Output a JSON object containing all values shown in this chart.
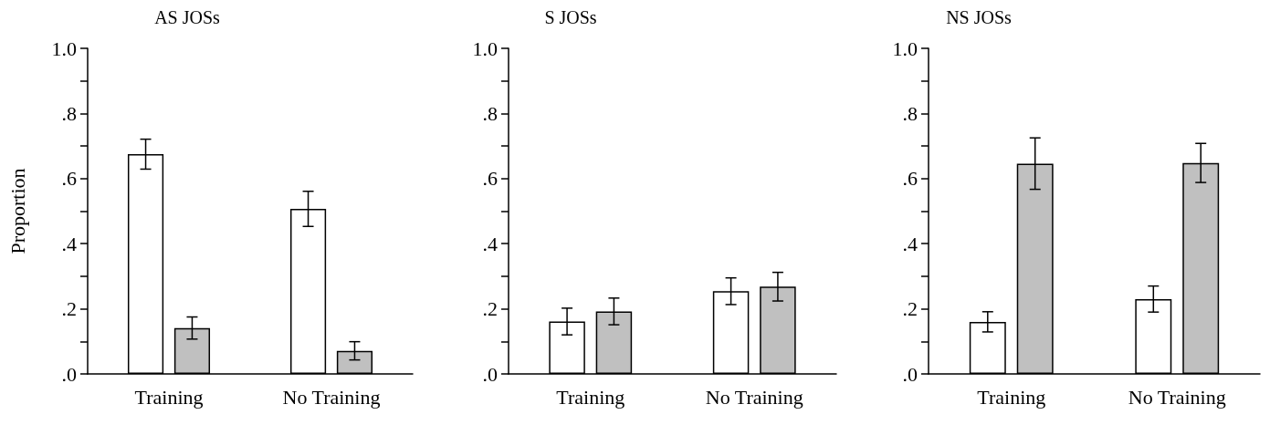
{
  "chart_data": [
    {
      "type": "bar",
      "title": "AS JOSs",
      "ylabel": "Proportion",
      "categories": [
        "Training",
        "No Training"
      ],
      "series": [
        {
          "color": "#ffffff",
          "values": [
            0.675,
            0.507
          ],
          "errors": [
            0.046,
            0.054
          ]
        },
        {
          "color": "#c0c0c0",
          "values": [
            0.141,
            0.071
          ],
          "errors": [
            0.034,
            0.028
          ]
        }
      ],
      "ylim": [
        0,
        1
      ],
      "yticks": [
        {
          "value": 0,
          "label": ".0"
        },
        {
          "value": 0.1,
          "label": null
        },
        {
          "value": 0.2,
          "label": ".2"
        },
        {
          "value": 0.3,
          "label": null
        },
        {
          "value": 0.4,
          "label": ".4"
        },
        {
          "value": 0.5,
          "label": null
        },
        {
          "value": 0.6,
          "label": ".6"
        },
        {
          "value": 0.7,
          "label": null
        },
        {
          "value": 0.8,
          "label": ".8"
        },
        {
          "value": 0.9,
          "label": null
        },
        {
          "value": 1,
          "label": "1.0"
        }
      ]
    },
    {
      "type": "bar",
      "title": "S JOSs",
      "categories": [
        "Training",
        "No Training"
      ],
      "series": [
        {
          "color": "#ffffff",
          "values": [
            0.161,
            0.254
          ],
          "errors": [
            0.041,
            0.041
          ]
        },
        {
          "color": "#c0c0c0",
          "values": [
            0.192,
            0.268
          ],
          "errors": [
            0.041,
            0.044
          ]
        }
      ],
      "ylim": [
        0,
        1
      ],
      "yticks": [
        {
          "value": 0,
          "label": ".0"
        },
        {
          "value": 0.1,
          "label": null
        },
        {
          "value": 0.2,
          "label": ".2"
        },
        {
          "value": 0.3,
          "label": null
        },
        {
          "value": 0.4,
          "label": ".4"
        },
        {
          "value": 0.5,
          "label": null
        },
        {
          "value": 0.6,
          "label": ".6"
        },
        {
          "value": 0.7,
          "label": null
        },
        {
          "value": 0.8,
          "label": ".8"
        },
        {
          "value": 0.9,
          "label": null
        },
        {
          "value": 1,
          "label": "1.0"
        }
      ]
    },
    {
      "type": "bar",
      "title": "NS JOSs",
      "categories": [
        "Training",
        "No Training"
      ],
      "series": [
        {
          "color": "#ffffff",
          "values": [
            0.16,
            0.23
          ],
          "errors": [
            0.031,
            0.04
          ]
        },
        {
          "color": "#c0c0c0",
          "values": [
            0.646,
            0.648
          ],
          "errors": [
            0.079,
            0.06
          ]
        }
      ],
      "ylim": [
        0,
        1
      ],
      "yticks": [
        {
          "value": 0,
          "label": ".0"
        },
        {
          "value": 0.1,
          "label": null
        },
        {
          "value": 0.2,
          "label": ".2"
        },
        {
          "value": 0.3,
          "label": null
        },
        {
          "value": 0.4,
          "label": ".4"
        },
        {
          "value": 0.5,
          "label": null
        },
        {
          "value": 0.6,
          "label": ".6"
        },
        {
          "value": 0.7,
          "label": null
        },
        {
          "value": 0.8,
          "label": ".8"
        },
        {
          "value": 0.9,
          "label": null
        },
        {
          "value": 1,
          "label": "1.0"
        }
      ]
    }
  ]
}
